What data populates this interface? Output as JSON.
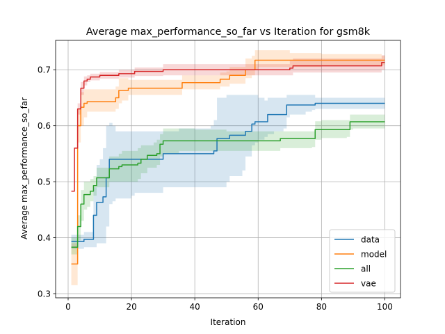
{
  "chart_data": {
    "type": "line",
    "title": "Average max_performance_so_far vs Iteration for gsm8k",
    "xlabel": "Iteration",
    "ylabel": "Average max_performance_so_far",
    "xlim": [
      -3.95,
      104.95
    ],
    "ylim": [
      0.2925,
      0.7525
    ],
    "xticks": [
      0,
      20,
      40,
      60,
      80,
      100
    ],
    "yticks": [
      0.3,
      0.4,
      0.5,
      0.6,
      0.7
    ],
    "xtick_labels": [
      "0",
      "20",
      "40",
      "60",
      "80",
      "100"
    ],
    "ytick_labels": [
      "0.3",
      "0.4",
      "0.5",
      "0.6",
      "0.7"
    ],
    "grid": true,
    "legend_position": "lower right",
    "series": [
      {
        "name": "data",
        "color": "#1f77b4",
        "x": [
          1,
          2,
          3,
          4,
          5,
          6,
          7,
          8,
          9,
          10,
          11,
          12,
          13,
          14,
          15,
          20,
          21,
          25,
          29,
          30,
          35,
          40,
          45,
          46,
          47,
          50,
          51,
          55,
          56,
          58,
          59,
          60,
          62,
          63,
          65,
          68,
          69,
          70,
          75,
          77,
          78,
          80,
          100
        ],
        "y": [
          0.393,
          0.393,
          0.393,
          0.393,
          0.397,
          0.397,
          0.397,
          0.44,
          0.463,
          0.463,
          0.473,
          0.507,
          0.54,
          0.54,
          0.54,
          0.54,
          0.54,
          0.54,
          0.54,
          0.55,
          0.55,
          0.55,
          0.55,
          0.555,
          0.577,
          0.577,
          0.583,
          0.583,
          0.59,
          0.603,
          0.607,
          0.607,
          0.607,
          0.62,
          0.62,
          0.62,
          0.637,
          0.637,
          0.637,
          0.637,
          0.64,
          0.64,
          0.64
        ],
        "lower": [
          0.38,
          0.38,
          0.38,
          0.38,
          0.383,
          0.383,
          0.383,
          0.383,
          0.39,
          0.39,
          0.39,
          0.42,
          0.46,
          0.465,
          0.47,
          0.475,
          0.48,
          0.48,
          0.48,
          0.49,
          0.49,
          0.49,
          0.49,
          0.49,
          0.49,
          0.5,
          0.51,
          0.52,
          0.545,
          0.565,
          0.57,
          0.575,
          0.58,
          0.585,
          0.59,
          0.595,
          0.615,
          0.62,
          0.625,
          0.628,
          0.63,
          0.63,
          0.63
        ],
        "upper": [
          0.405,
          0.405,
          0.405,
          0.405,
          0.41,
          0.41,
          0.41,
          0.49,
          0.53,
          0.54,
          0.56,
          0.6,
          0.605,
          0.6,
          0.59,
          0.59,
          0.59,
          0.59,
          0.59,
          0.59,
          0.595,
          0.595,
          0.6,
          0.61,
          0.65,
          0.655,
          0.655,
          0.655,
          0.655,
          0.655,
          0.655,
          0.65,
          0.645,
          0.65,
          0.65,
          0.65,
          0.655,
          0.655,
          0.655,
          0.655,
          0.65,
          0.65,
          0.65
        ]
      },
      {
        "name": "model",
        "color": "#ff7f0e",
        "x": [
          1,
          2,
          3,
          4,
          5,
          6,
          10,
          14,
          15,
          16,
          17,
          19,
          20,
          25,
          30,
          35,
          36,
          40,
          47,
          48,
          50,
          51,
          55,
          56,
          58,
          59,
          60,
          70,
          80,
          99,
          100
        ],
        "y": [
          0.353,
          0.353,
          0.6,
          0.633,
          0.64,
          0.643,
          0.643,
          0.643,
          0.65,
          0.663,
          0.663,
          0.667,
          0.667,
          0.667,
          0.667,
          0.667,
          0.677,
          0.677,
          0.677,
          0.683,
          0.683,
          0.69,
          0.69,
          0.7,
          0.7,
          0.717,
          0.717,
          0.717,
          0.717,
          0.717,
          0.717
        ],
        "lower": [
          0.315,
          0.315,
          0.57,
          0.6,
          0.615,
          0.625,
          0.625,
          0.625,
          0.63,
          0.64,
          0.645,
          0.655,
          0.655,
          0.655,
          0.655,
          0.655,
          0.665,
          0.665,
          0.665,
          0.67,
          0.67,
          0.675,
          0.675,
          0.685,
          0.69,
          0.7,
          0.705,
          0.705,
          0.707,
          0.708,
          0.708
        ],
        "upper": [
          0.39,
          0.39,
          0.63,
          0.66,
          0.665,
          0.665,
          0.665,
          0.665,
          0.67,
          0.685,
          0.685,
          0.682,
          0.682,
          0.682,
          0.682,
          0.682,
          0.69,
          0.69,
          0.69,
          0.695,
          0.697,
          0.705,
          0.705,
          0.72,
          0.725,
          0.735,
          0.735,
          0.73,
          0.728,
          0.725,
          0.725
        ]
      },
      {
        "name": "all",
        "color": "#2ca02c",
        "x": [
          1,
          2,
          3,
          4,
          5,
          6,
          7,
          8,
          9,
          10,
          12,
          13,
          15,
          16,
          17,
          20,
          22,
          23,
          25,
          27,
          28,
          29,
          30,
          35,
          40,
          50,
          60,
          66,
          67,
          70,
          77,
          78,
          80,
          88,
          89,
          90,
          100
        ],
        "y": [
          0.383,
          0.383,
          0.42,
          0.46,
          0.477,
          0.477,
          0.483,
          0.493,
          0.507,
          0.507,
          0.507,
          0.523,
          0.523,
          0.527,
          0.53,
          0.53,
          0.533,
          0.54,
          0.547,
          0.547,
          0.55,
          0.567,
          0.573,
          0.573,
          0.573,
          0.573,
          0.573,
          0.573,
          0.577,
          0.577,
          0.577,
          0.593,
          0.593,
          0.593,
          0.607,
          0.607,
          0.607
        ],
        "lower": [
          0.37,
          0.37,
          0.395,
          0.43,
          0.45,
          0.455,
          0.465,
          0.475,
          0.49,
          0.49,
          0.49,
          0.5,
          0.5,
          0.5,
          0.5,
          0.5,
          0.505,
          0.515,
          0.525,
          0.525,
          0.53,
          0.545,
          0.55,
          0.555,
          0.555,
          0.555,
          0.555,
          0.555,
          0.56,
          0.56,
          0.562,
          0.575,
          0.578,
          0.58,
          0.593,
          0.595,
          0.595
        ],
        "upper": [
          0.4,
          0.4,
          0.44,
          0.485,
          0.5,
          0.5,
          0.505,
          0.51,
          0.525,
          0.525,
          0.525,
          0.545,
          0.545,
          0.55,
          0.555,
          0.555,
          0.56,
          0.565,
          0.565,
          0.57,
          0.575,
          0.585,
          0.595,
          0.595,
          0.593,
          0.59,
          0.59,
          0.59,
          0.59,
          0.59,
          0.59,
          0.608,
          0.61,
          0.61,
          0.62,
          0.62,
          0.62
        ]
      },
      {
        "name": "vae",
        "color": "#d62728",
        "x": [
          1,
          2,
          3,
          4,
          5,
          6,
          7,
          8,
          10,
          14,
          15,
          16,
          17,
          20,
          21,
          25,
          29,
          30,
          40,
          50,
          60,
          70,
          71,
          80,
          98,
          99,
          100
        ],
        "y": [
          0.483,
          0.56,
          0.63,
          0.667,
          0.68,
          0.683,
          0.687,
          0.687,
          0.69,
          0.69,
          0.69,
          0.693,
          0.693,
          0.693,
          0.697,
          0.697,
          0.697,
          0.7,
          0.7,
          0.7,
          0.7,
          0.703,
          0.707,
          0.707,
          0.707,
          0.713,
          0.713
        ],
        "lower": [
          0.483,
          0.56,
          0.62,
          0.655,
          0.672,
          0.678,
          0.681,
          0.681,
          0.684,
          0.684,
          0.684,
          0.686,
          0.686,
          0.686,
          0.689,
          0.689,
          0.689,
          0.69,
          0.69,
          0.69,
          0.69,
          0.69,
          0.695,
          0.695,
          0.695,
          0.7,
          0.7
        ],
        "upper": [
          0.483,
          0.56,
          0.64,
          0.678,
          0.688,
          0.69,
          0.693,
          0.693,
          0.696,
          0.696,
          0.696,
          0.7,
          0.7,
          0.7,
          0.704,
          0.704,
          0.704,
          0.71,
          0.71,
          0.71,
          0.71,
          0.716,
          0.72,
          0.72,
          0.72,
          0.726,
          0.726
        ]
      }
    ]
  }
}
